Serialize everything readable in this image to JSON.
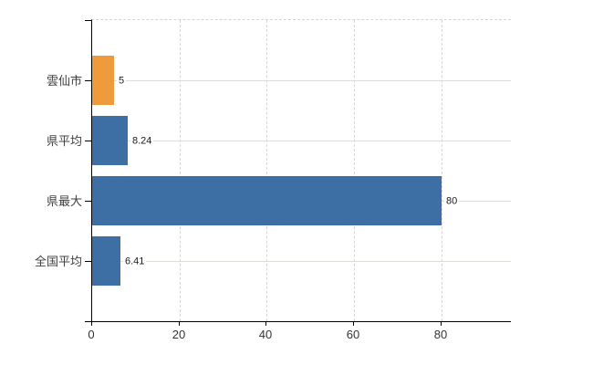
{
  "chart_data": {
    "type": "bar",
    "orientation": "horizontal",
    "categories": [
      "雲仙市",
      "県平均",
      "県最大",
      "全国平均"
    ],
    "values": [
      5,
      8.24,
      80,
      6.41
    ],
    "value_labels": [
      "5",
      "8.24",
      "80",
      "6.41"
    ],
    "bar_colors": [
      "#EE9B3D",
      "#3D6FA5",
      "#3D6FA5",
      "#3D6FA5"
    ],
    "x_ticks": [
      0,
      20,
      40,
      60,
      80
    ],
    "x_tick_labels": [
      "0",
      "20",
      "40",
      "60",
      "80"
    ],
    "xlim": [
      0,
      96
    ],
    "grid": true,
    "legend": "none"
  },
  "colors": {
    "bar_orange": "#EE9B3D",
    "bar_blue": "#3D6FA5",
    "axis": "#000000",
    "grid_horizontal": "#D9DFD7",
    "grid_vertical": "#D6D2D6",
    "category_label": "#404040",
    "x_tick_label": "#333333",
    "value_label": "#1A1A1A",
    "background": "#FFFFFF"
  }
}
